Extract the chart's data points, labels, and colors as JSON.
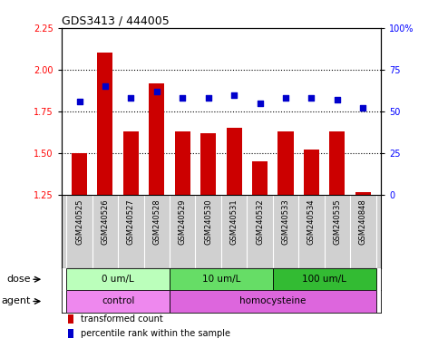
{
  "title": "GDS3413 / 444005",
  "samples": [
    "GSM240525",
    "GSM240526",
    "GSM240527",
    "GSM240528",
    "GSM240529",
    "GSM240530",
    "GSM240531",
    "GSM240532",
    "GSM240533",
    "GSM240534",
    "GSM240535",
    "GSM240848"
  ],
  "bar_values": [
    1.5,
    2.1,
    1.63,
    1.92,
    1.63,
    1.62,
    1.65,
    1.45,
    1.63,
    1.52,
    1.63,
    1.27
  ],
  "dot_values": [
    56,
    65,
    58,
    62,
    58,
    58,
    60,
    55,
    58,
    58,
    57,
    52
  ],
  "ylim_left": [
    1.25,
    2.25
  ],
  "ylim_right": [
    0,
    100
  ],
  "yticks_left": [
    1.25,
    1.5,
    1.75,
    2.0,
    2.25
  ],
  "yticks_right": [
    0,
    25,
    50,
    75,
    100
  ],
  "bar_color": "#cc0000",
  "dot_color": "#0000cc",
  "dose_groups": [
    {
      "label": "0 um/L",
      "start": 0,
      "end": 4,
      "color": "#bbffbb"
    },
    {
      "label": "10 um/L",
      "start": 4,
      "end": 8,
      "color": "#66dd66"
    },
    {
      "label": "100 um/L",
      "start": 8,
      "end": 12,
      "color": "#33bb33"
    }
  ],
  "agent_groups": [
    {
      "label": "control",
      "start": 0,
      "end": 4,
      "color": "#ee88ee"
    },
    {
      "label": "homocysteine",
      "start": 4,
      "end": 12,
      "color": "#dd66dd"
    }
  ],
  "dose_label": "dose",
  "agent_label": "agent",
  "legend_bar": "transformed count",
  "legend_dot": "percentile rank within the sample",
  "xtick_bg": "#d0d0d0",
  "n_samples": 12
}
